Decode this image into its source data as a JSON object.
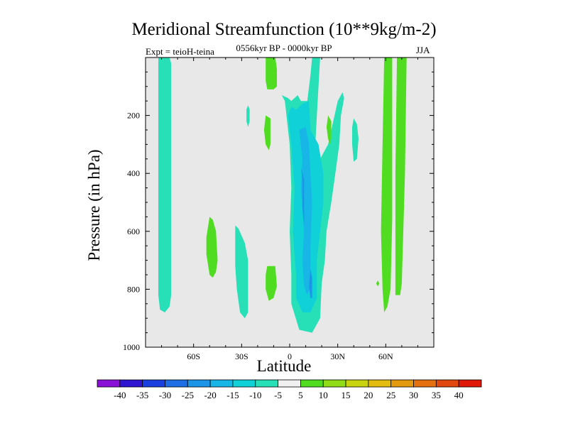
{
  "chart_data": {
    "type": "contour",
    "title": "Meridional Streamfunction (10**9kg/m-2)",
    "subtitle": "0556kyr BP - 0000kyr BP",
    "left_annotation": "Expt = teioH-teina",
    "right_annotation": "JJA",
    "xlabel": "Latitude",
    "ylabel": "Pressure (in hPa)",
    "xlim": [
      -90,
      90
    ],
    "ylim": [
      1000,
      0
    ],
    "x_ticks": [
      {
        "value": -60,
        "label": "60S"
      },
      {
        "value": -30,
        "label": "30S"
      },
      {
        "value": 0,
        "label": "0"
      },
      {
        "value": 30,
        "label": "30N"
      },
      {
        "value": 60,
        "label": "60N"
      }
    ],
    "y_ticks": [
      {
        "value": 200,
        "label": "200"
      },
      {
        "value": 400,
        "label": "400"
      },
      {
        "value": 600,
        "label": "600"
      },
      {
        "value": 800,
        "label": "800"
      },
      {
        "value": 1000,
        "label": "1000"
      }
    ],
    "background_color": "#e8e8e8",
    "colorbar": {
      "levels": [
        "-40",
        "-35",
        "-30",
        "-25",
        "-20",
        "-15",
        "-10",
        "-5",
        "5",
        "10",
        "15",
        "20",
        "25",
        "30",
        "35",
        "40"
      ],
      "colors": [
        "#8a10d8",
        "#3016d0",
        "#1a40e0",
        "#1e6ee6",
        "#1c94e8",
        "#18b6e6",
        "#10d0d8",
        "#28e0b8",
        "#f0f0f0",
        "#50dc20",
        "#90dc18",
        "#c8d410",
        "#e4bc10",
        "#e49a10",
        "#e47010",
        "#e04810",
        "#e01808"
      ]
    },
    "regions": [
      {
        "level": -5,
        "points": [
          [
            -82,
            0
          ],
          [
            -75,
            0
          ],
          [
            -74,
            20
          ],
          [
            -74,
            820
          ],
          [
            -75,
            860
          ],
          [
            -78,
            880
          ],
          [
            -81,
            870
          ],
          [
            -82,
            820
          ]
        ]
      },
      {
        "level": -5,
        "points": [
          [
            -34,
            580
          ],
          [
            -32,
            590
          ],
          [
            -28,
            640
          ],
          [
            -26,
            700
          ],
          [
            -26,
            880
          ],
          [
            -28,
            900
          ],
          [
            -31,
            880
          ],
          [
            -33,
            800
          ],
          [
            -34,
            720
          ]
        ]
      },
      {
        "level": -5,
        "points": [
          [
            -26,
            165
          ],
          [
            -25,
            180
          ],
          [
            -25,
            220
          ],
          [
            -26,
            240
          ],
          [
            -27,
            220
          ],
          [
            -27,
            180
          ]
        ]
      },
      {
        "level": -5,
        "points": [
          [
            -5,
            130
          ],
          [
            -3,
            150
          ],
          [
            0,
            300
          ],
          [
            1,
            450
          ],
          [
            0,
            600
          ],
          [
            1,
            750
          ],
          [
            1,
            850
          ],
          [
            6,
            940
          ],
          [
            14,
            950
          ],
          [
            19,
            900
          ],
          [
            20,
            780
          ],
          [
            22,
            700
          ],
          [
            23,
            600
          ],
          [
            26,
            500
          ],
          [
            28,
            420
          ],
          [
            31,
            300
          ],
          [
            32,
            200
          ],
          [
            34,
            140
          ],
          [
            33,
            120
          ],
          [
            30,
            150
          ],
          [
            28,
            200
          ],
          [
            24,
            300
          ],
          [
            19,
            350
          ],
          [
            16,
            300
          ],
          [
            17,
            200
          ],
          [
            19,
            0
          ],
          [
            14,
            0
          ],
          [
            13,
            60
          ],
          [
            11,
            150
          ],
          [
            7,
            150
          ],
          [
            5,
            130
          ],
          [
            1,
            150
          ],
          [
            -1,
            140
          ]
        ]
      },
      {
        "level": -5,
        "points": [
          [
            40,
            210
          ],
          [
            42,
            230
          ],
          [
            43,
            280
          ],
          [
            42,
            350
          ],
          [
            40,
            360
          ],
          [
            39,
            300
          ],
          [
            39,
            240
          ]
        ]
      },
      {
        "level": -10,
        "points": [
          [
            -1,
            200
          ],
          [
            1,
            300
          ],
          [
            3,
            450
          ],
          [
            2,
            600
          ],
          [
            4,
            750
          ],
          [
            4,
            830
          ],
          [
            8,
            880
          ],
          [
            13,
            880
          ],
          [
            17,
            830
          ],
          [
            17,
            700
          ],
          [
            19,
            600
          ],
          [
            21,
            500
          ],
          [
            21,
            400
          ],
          [
            18,
            300
          ],
          [
            13,
            250
          ],
          [
            12,
            150
          ],
          [
            8,
            160
          ],
          [
            4,
            180
          ],
          [
            1,
            170
          ]
        ]
      },
      {
        "level": -15,
        "points": [
          [
            6,
            250
          ],
          [
            8,
            350
          ],
          [
            7,
            450
          ],
          [
            9,
            600
          ],
          [
            8,
            700
          ],
          [
            9,
            790
          ],
          [
            11,
            820
          ],
          [
            13,
            790
          ],
          [
            13,
            650
          ],
          [
            14,
            500
          ],
          [
            13,
            400
          ],
          [
            12,
            300
          ],
          [
            10,
            240
          ]
        ]
      },
      {
        "level": -20,
        "points": [
          [
            7,
            380
          ],
          [
            8,
            420
          ],
          [
            8,
            520
          ],
          [
            9,
            580
          ],
          [
            9,
            500
          ],
          [
            9,
            420
          ]
        ]
      },
      {
        "level": -20,
        "points": [
          [
            13,
            730
          ],
          [
            14,
            760
          ],
          [
            14,
            830
          ],
          [
            13,
            830
          ],
          [
            12,
            790
          ]
        ]
      },
      {
        "level": 5,
        "points": [
          [
            -15,
            0
          ],
          [
            -9,
            0
          ],
          [
            -8,
            40
          ],
          [
            -8,
            100
          ],
          [
            -10,
            110
          ],
          [
            -14,
            110
          ],
          [
            -15,
            80
          ]
        ]
      },
      {
        "level": 5,
        "points": [
          [
            -15,
            200
          ],
          [
            -12,
            210
          ],
          [
            -12,
            300
          ],
          [
            -13,
            320
          ],
          [
            -15,
            300
          ],
          [
            -16,
            250
          ]
        ]
      },
      {
        "level": 5,
        "points": [
          [
            -50,
            550
          ],
          [
            -48,
            560
          ],
          [
            -46,
            600
          ],
          [
            -45,
            700
          ],
          [
            -46,
            740
          ],
          [
            -48,
            760
          ],
          [
            -50,
            750
          ],
          [
            -52,
            680
          ],
          [
            -52,
            620
          ]
        ]
      },
      {
        "level": 5,
        "points": [
          [
            -14,
            720
          ],
          [
            -9,
            720
          ],
          [
            -8,
            790
          ],
          [
            -10,
            830
          ],
          [
            -13,
            840
          ],
          [
            -15,
            800
          ],
          [
            -15,
            750
          ]
        ]
      },
      {
        "level": 5,
        "points": [
          [
            24,
            200
          ],
          [
            26,
            220
          ],
          [
            26,
            280
          ],
          [
            25,
            300
          ],
          [
            24,
            280
          ],
          [
            23,
            240
          ]
        ]
      },
      {
        "level": 5,
        "points": [
          [
            59,
            0
          ],
          [
            64,
            0
          ],
          [
            64,
            560
          ],
          [
            63,
            800
          ],
          [
            61,
            860
          ],
          [
            59,
            880
          ],
          [
            58,
            800
          ],
          [
            57,
            600
          ],
          [
            58,
            300
          ]
        ]
      },
      {
        "level": 5,
        "points": [
          [
            67,
            0
          ],
          [
            73,
            0
          ],
          [
            72,
            400
          ],
          [
            70,
            780
          ],
          [
            69,
            820
          ],
          [
            66,
            820
          ],
          [
            66,
            400
          ]
        ]
      },
      {
        "level": 5,
        "points": [
          [
            55,
            770
          ],
          [
            56,
            780
          ],
          [
            55,
            790
          ],
          [
            54,
            780
          ]
        ]
      }
    ]
  }
}
